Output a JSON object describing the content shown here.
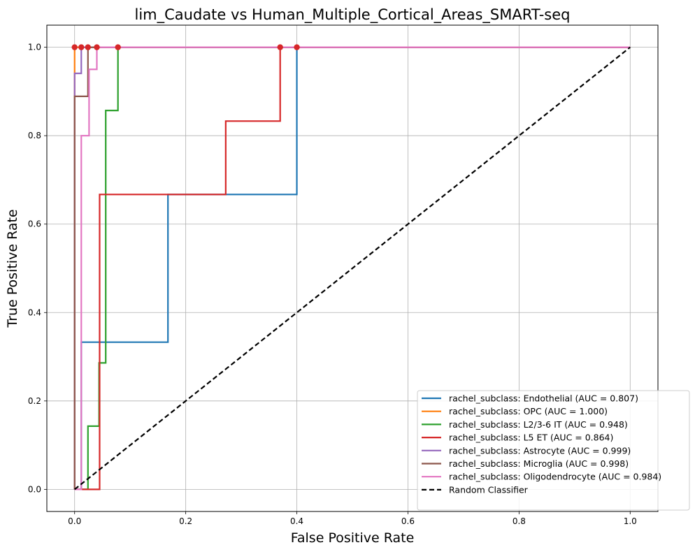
{
  "chart_data": {
    "type": "line",
    "title": "lim_Caudate vs Human_Multiple_Cortical_Areas_SMART-seq",
    "xlabel": "False Positive Rate",
    "ylabel": "True Positive Rate",
    "xlim": [
      -0.05,
      1.05
    ],
    "ylim": [
      -0.05,
      1.05
    ],
    "xticks": [
      "0.0",
      "0.2",
      "0.4",
      "0.6",
      "0.8",
      "1.0"
    ],
    "yticks": [
      "0.0",
      "0.2",
      "0.4",
      "0.6",
      "0.8",
      "1.0"
    ],
    "grid": true,
    "legend_position": "lower-right",
    "series": [
      {
        "name": "rachel_subclass: Endothelial (AUC = 0.807)",
        "color": "#1f77b4",
        "x": [
          0,
          0.012,
          0.012,
          0.168,
          0.168,
          0.4,
          0.4,
          1.0
        ],
        "y": [
          0,
          0,
          0.333,
          0.333,
          0.667,
          0.667,
          1.0,
          1.0
        ],
        "marker": [
          0.4,
          1.0
        ]
      },
      {
        "name": "rachel_subclass: OPC (AUC = 1.000)",
        "color": "#ff7f0e",
        "x": [
          0,
          0,
          1.0
        ],
        "y": [
          0,
          1.0,
          1.0
        ],
        "marker": [
          0.0,
          1.0
        ]
      },
      {
        "name": "rachel_subclass: L2/3-6 IT (AUC = 0.948)",
        "color": "#2ca02c",
        "x": [
          0,
          0.024,
          0.024,
          0.044,
          0.044,
          0.056,
          0.056,
          0.078,
          0.078,
          1.0
        ],
        "y": [
          0,
          0,
          0.143,
          0.143,
          0.286,
          0.286,
          0.857,
          0.857,
          1.0,
          1.0
        ],
        "marker": [
          0.078,
          1.0
        ]
      },
      {
        "name": "rachel_subclass: L5 ET (AUC = 0.864)",
        "color": "#d62728",
        "x": [
          0,
          0.045,
          0.045,
          0.272,
          0.272,
          0.37,
          0.37,
          1.0
        ],
        "y": [
          0,
          0,
          0.667,
          0.667,
          0.833,
          0.833,
          1.0,
          1.0
        ],
        "marker": [
          0.37,
          1.0
        ]
      },
      {
        "name": "rachel_subclass: Astrocyte (AUC = 0.999)",
        "color": "#9467bd",
        "x": [
          0,
          0,
          0.012,
          0.012,
          1.0
        ],
        "y": [
          0,
          0.941,
          0.941,
          1.0,
          1.0
        ],
        "marker": [
          0.012,
          1.0
        ]
      },
      {
        "name": "rachel_subclass: Microglia (AUC = 0.998)",
        "color": "#8c564b",
        "x": [
          0,
          0,
          0.024,
          0.024,
          1.0
        ],
        "y": [
          0,
          0.889,
          0.889,
          1.0,
          1.0
        ],
        "marker": [
          0.024,
          1.0
        ]
      },
      {
        "name": "rachel_subclass: Oligodendrocyte (AUC = 0.984)",
        "color": "#e377c2",
        "x": [
          0,
          0.012,
          0.012,
          0.026,
          0.026,
          0.04,
          0.04,
          1.0
        ],
        "y": [
          0,
          0,
          0.8,
          0.8,
          0.95,
          0.95,
          1.0,
          1.0
        ],
        "marker": [
          0.04,
          1.0
        ]
      },
      {
        "name": "Random Classifier",
        "color": "#000000",
        "dashed": true,
        "x": [
          0,
          1.0
        ],
        "y": [
          0,
          1.0
        ]
      }
    ],
    "marker_color": "#d62728"
  }
}
